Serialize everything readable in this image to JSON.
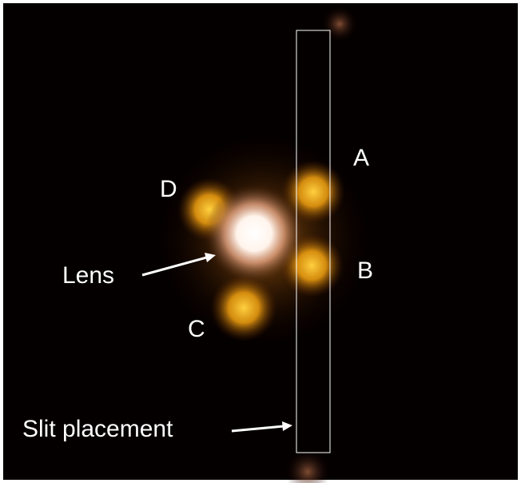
{
  "labels": {
    "a": "A",
    "b": "B",
    "c": "C",
    "d": "D",
    "lens": "Lens",
    "slit": "Slit placement"
  }
}
